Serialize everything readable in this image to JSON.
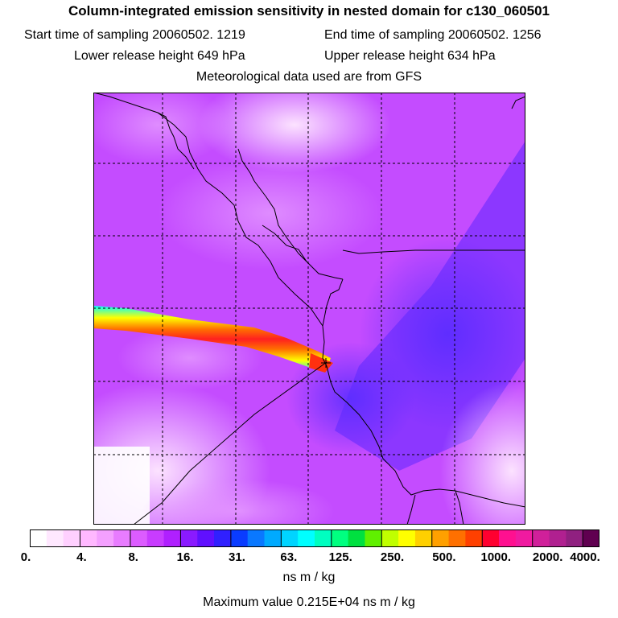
{
  "header": {
    "title": "Column-integrated emission sensitivity in nested domain for c130_060501",
    "start_time": "Start time of sampling 20060502.  1219",
    "end_time": "End time of sampling 20060502.  1256",
    "lower_release": "Lower release height  649 hPa",
    "upper_release": "Upper release height  634 hPa",
    "met_data": "Meteorological data used are from GFS"
  },
  "colorbar": {
    "colors": [
      "#ffffff",
      "#ffe8ff",
      "#ffd0ff",
      "#ffb8ff",
      "#f4a0ff",
      "#e87cff",
      "#dc5cff",
      "#c83cff",
      "#b020ff",
      "#8a1aff",
      "#6010ff",
      "#3020ff",
      "#0a3cff",
      "#0a78ff",
      "#00aaff",
      "#00d4ff",
      "#00ffff",
      "#00ffc0",
      "#00ff80",
      "#00e040",
      "#60f000",
      "#c0ff00",
      "#ffff00",
      "#ffd000",
      "#ffa000",
      "#ff7000",
      "#ff4000",
      "#ff0030",
      "#ff1090",
      "#f01aa0",
      "#d0209a",
      "#b02090",
      "#902080",
      "#600050"
    ],
    "ticks": [
      "0.",
      "4.",
      "8.",
      "16.",
      "31.",
      "63.",
      "125.",
      "250.",
      "500.",
      "1000.",
      "2000.",
      "4000."
    ],
    "units": "ns m / kg"
  },
  "max_value": "Maximum value  0.215E+04 ns m / kg",
  "colors": {
    "border": "#000000",
    "grid": "#000000",
    "field_base": "#c44cff",
    "field_low": "#ffd6ff",
    "field_high": "#6a2cff"
  }
}
